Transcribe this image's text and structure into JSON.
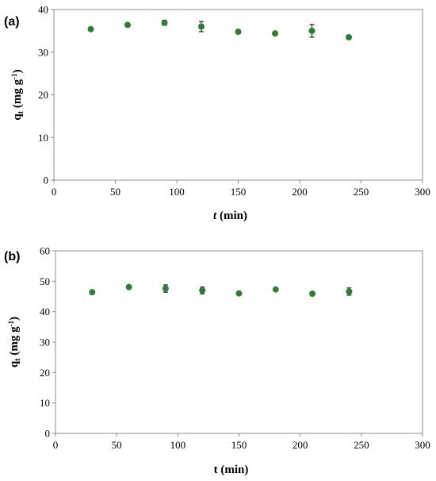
{
  "chart_data": [
    {
      "type": "scatter",
      "panel_label": "(a)",
      "xlabel_italic": "t",
      "xlabel_rest": " (min)",
      "ylabel_main": "q",
      "ylabel_sub": "t",
      "ylabel_unit": " (mg g",
      "ylabel_sup": "-1",
      "ylabel_close": ")",
      "xlim": [
        0,
        300
      ],
      "ylim": [
        0,
        40
      ],
      "xticks": [
        0,
        50,
        100,
        150,
        200,
        250,
        300
      ],
      "yticks": [
        0,
        10,
        20,
        30,
        40
      ],
      "grid": false,
      "marker_color": "#2e7d32",
      "x": [
        30,
        60,
        90,
        120,
        150,
        180,
        210,
        240
      ],
      "y": [
        35.4,
        36.4,
        36.9,
        36.0,
        34.8,
        34.4,
        35.0,
        33.5
      ],
      "error": [
        0.2,
        0.3,
        0.6,
        1.2,
        0.5,
        0.2,
        1.5,
        0.3
      ]
    },
    {
      "type": "scatter",
      "panel_label": "(b)",
      "xlabel_italic": "",
      "xlabel_rest": "t (min)",
      "ylabel_main": "q",
      "ylabel_sub": "t",
      "ylabel_unit": " (mg g",
      "ylabel_sup": "-1",
      "ylabel_close": ")",
      "xlim": [
        0,
        300
      ],
      "ylim": [
        0,
        60
      ],
      "xticks": [
        0,
        50,
        100,
        150,
        200,
        250,
        300
      ],
      "yticks": [
        0,
        10,
        20,
        30,
        40,
        50,
        60
      ],
      "grid": false,
      "marker_color": "#2e7d32",
      "x": [
        30,
        60,
        90,
        120,
        150,
        180,
        210,
        240
      ],
      "y": [
        46.4,
        48.1,
        47.6,
        47.0,
        46.0,
        47.3,
        45.9,
        46.6
      ],
      "error": [
        0.3,
        0.3,
        1.2,
        1.1,
        0.4,
        0.3,
        0.3,
        1.2
      ]
    }
  ]
}
